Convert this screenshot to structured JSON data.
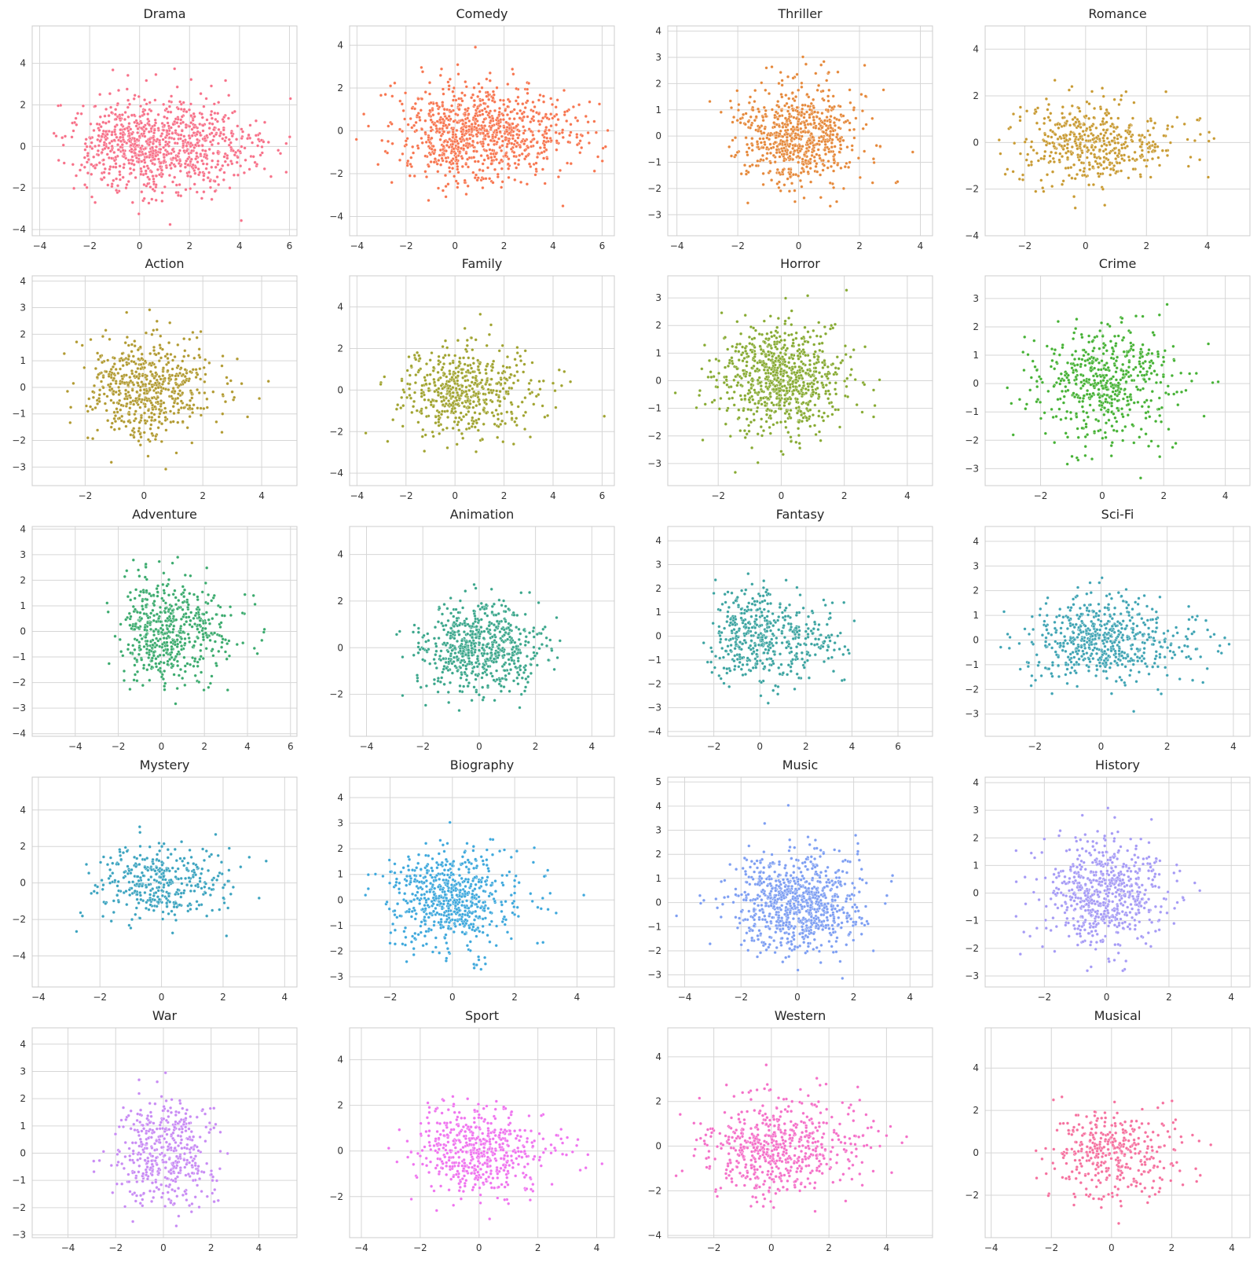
{
  "chart_data": [
    {
      "type": "scatter",
      "title": "Drama",
      "color": "#f77189",
      "xlim": [
        -4.3,
        6.3
      ],
      "ylim": [
        -4.3,
        5.8
      ],
      "xticks": [
        -4,
        -2,
        0,
        2,
        4,
        6
      ],
      "yticks": [
        -4,
        -2,
        0,
        2,
        4
      ],
      "center": [
        0.3,
        0.1
      ],
      "spread": [
        1.5,
        1.15
      ],
      "n": 950,
      "skew": 0.7,
      "points": []
    },
    {
      "type": "scatter",
      "title": "Comedy",
      "color": "#f7754f",
      "xlim": [
        -4.3,
        6.5
      ],
      "ylim": [
        -4.9,
        4.9
      ],
      "xticks": [
        -4,
        -2,
        0,
        2,
        4,
        6
      ],
      "yticks": [
        -4,
        -2,
        0,
        2,
        4
      ],
      "center": [
        0.6,
        -0.1
      ],
      "spread": [
        1.5,
        1.15
      ],
      "n": 950,
      "skew": 0.6,
      "points": []
    },
    {
      "type": "scatter",
      "title": "Thriller",
      "color": "#e5883a",
      "xlim": [
        -4.3,
        4.4
      ],
      "ylim": [
        -3.8,
        4.2
      ],
      "xticks": [
        -4,
        -2,
        0,
        2,
        4
      ],
      "yticks": [
        -3,
        -2,
        -1,
        0,
        1,
        2,
        3,
        4
      ],
      "center": [
        0.0,
        0.0
      ],
      "spread": [
        0.95,
        0.95
      ],
      "n": 700,
      "skew": 0.0,
      "points": []
    },
    {
      "type": "scatter",
      "title": "Romance",
      "color": "#c89a32",
      "xlim": [
        -3.3,
        5.4
      ],
      "ylim": [
        -4.0,
        5.0
      ],
      "xticks": [
        -2,
        0,
        2,
        4
      ],
      "yticks": [
        -4,
        -2,
        0,
        2,
        4
      ],
      "center": [
        0.0,
        0.0
      ],
      "spread": [
        1.1,
        0.9
      ],
      "n": 500,
      "skew": 0.4,
      "points": []
    },
    {
      "type": "scatter",
      "title": "Action",
      "color": "#b19a31",
      "xlim": [
        -3.8,
        5.2
      ],
      "ylim": [
        -3.7,
        4.2
      ],
      "xticks": [
        -2,
        0,
        2,
        4
      ],
      "yticks": [
        -3,
        -2,
        -1,
        0,
        1,
        2,
        3,
        4
      ],
      "center": [
        0.0,
        0.0
      ],
      "spread": [
        0.95,
        0.95
      ],
      "n": 600,
      "skew": 0.3,
      "points": []
    },
    {
      "type": "scatter",
      "title": "Family",
      "color": "#a0a32f",
      "xlim": [
        -4.3,
        6.5
      ],
      "ylim": [
        -4.6,
        5.5
      ],
      "xticks": [
        -4,
        -2,
        0,
        2,
        4,
        6
      ],
      "yticks": [
        -4,
        -2,
        0,
        2,
        4
      ],
      "center": [
        0.2,
        0.0
      ],
      "spread": [
        1.2,
        1.1
      ],
      "n": 550,
      "skew": 0.4,
      "points": []
    },
    {
      "type": "scatter",
      "title": "Horror",
      "color": "#87aa32",
      "xlim": [
        -3.6,
        4.8
      ],
      "ylim": [
        -3.8,
        3.8
      ],
      "xticks": [
        -2,
        0,
        2,
        4
      ],
      "yticks": [
        -3,
        -2,
        -1,
        0,
        1,
        2,
        3
      ],
      "center": [
        0.0,
        0.0
      ],
      "spread": [
        1.0,
        1.0
      ],
      "n": 800,
      "skew": 0.0,
      "points": []
    },
    {
      "type": "scatter",
      "title": "Crime",
      "color": "#45b134",
      "xlim": [
        -3.8,
        4.8
      ],
      "ylim": [
        -3.6,
        3.8
      ],
      "xticks": [
        -2,
        0,
        2,
        4
      ],
      "yticks": [
        -3,
        -2,
        -1,
        0,
        1,
        2,
        3
      ],
      "center": [
        0.0,
        0.0
      ],
      "spread": [
        1.0,
        1.0
      ],
      "n": 550,
      "skew": 0.2,
      "points": []
    },
    {
      "type": "scatter",
      "title": "Adventure",
      "color": "#3aaa6d",
      "xlim": [
        -6.0,
        6.3
      ],
      "ylim": [
        -4.1,
        4.1
      ],
      "xticks": [
        -4,
        -2,
        0,
        2,
        4,
        6
      ],
      "yticks": [
        -4,
        -3,
        -2,
        -1,
        0,
        1,
        2,
        3,
        4
      ],
      "center": [
        0.0,
        0.0
      ],
      "spread": [
        0.9,
        1.0
      ],
      "n": 550,
      "skew": 0.8,
      "points": []
    },
    {
      "type": "scatter",
      "title": "Animation",
      "color": "#3aa68b",
      "xlim": [
        -4.6,
        4.8
      ],
      "ylim": [
        -3.8,
        5.2
      ],
      "xticks": [
        -4,
        -2,
        0,
        2,
        4
      ],
      "yticks": [
        -2,
        0,
        2,
        4
      ],
      "center": [
        0.0,
        0.0
      ],
      "spread": [
        1.05,
        0.95
      ],
      "n": 650,
      "skew": 0.0,
      "points": []
    },
    {
      "type": "scatter",
      "title": "Fantasy",
      "color": "#3ba3a0",
      "xlim": [
        -4.0,
        7.5
      ],
      "ylim": [
        -4.2,
        4.6
      ],
      "xticks": [
        -2,
        0,
        2,
        4,
        6
      ],
      "yticks": [
        -4,
        -3,
        -2,
        -1,
        0,
        1,
        2,
        3,
        4
      ],
      "center": [
        -0.3,
        0.0
      ],
      "spread": [
        0.9,
        1.0
      ],
      "n": 500,
      "skew": 0.9,
      "points": []
    },
    {
      "type": "scatter",
      "title": "Sci-Fi",
      "color": "#3ea3b3",
      "xlim": [
        -3.5,
        4.5
      ],
      "ylim": [
        -3.9,
        4.6
      ],
      "xticks": [
        -2,
        0,
        2,
        4
      ],
      "yticks": [
        -3,
        -2,
        -1,
        0,
        1,
        2,
        3,
        4
      ],
      "center": [
        0.0,
        0.0
      ],
      "spread": [
        1.0,
        0.9
      ],
      "n": 600,
      "skew": 0.3,
      "points": []
    },
    {
      "type": "scatter",
      "title": "Mystery",
      "color": "#3ba3bf",
      "xlim": [
        -4.2,
        4.4
      ],
      "ylim": [
        -5.7,
        5.8
      ],
      "xticks": [
        -4,
        -2,
        0,
        2,
        4
      ],
      "yticks": [
        -4,
        -2,
        0,
        2,
        4
      ],
      "center": [
        0.0,
        0.0
      ],
      "spread": [
        1.1,
        1.0
      ],
      "n": 380,
      "skew": 0.0,
      "points": []
    },
    {
      "type": "scatter",
      "title": "Biography",
      "color": "#3ea8dc",
      "xlim": [
        -3.3,
        5.2
      ],
      "ylim": [
        -3.4,
        4.8
      ],
      "xticks": [
        -2,
        0,
        2,
        4
      ],
      "yticks": [
        -3,
        -2,
        -1,
        0,
        1,
        2,
        3,
        4
      ],
      "center": [
        0.0,
        0.0
      ],
      "spread": [
        1.0,
        1.0
      ],
      "n": 650,
      "skew": 0.2,
      "points": []
    },
    {
      "type": "scatter",
      "title": "Music",
      "color": "#7d9ef2",
      "xlim": [
        -4.6,
        4.8
      ],
      "ylim": [
        -3.5,
        5.2
      ],
      "xticks": [
        -4,
        -2,
        0,
        2,
        4
      ],
      "yticks": [
        -3,
        -2,
        -1,
        0,
        1,
        2,
        3,
        4,
        5
      ],
      "center": [
        0.0,
        0.0
      ],
      "spread": [
        1.1,
        1.0
      ],
      "n": 850,
      "skew": 0.0,
      "points": []
    },
    {
      "type": "scatter",
      "title": "History",
      "color": "#a59af5",
      "xlim": [
        -3.9,
        4.6
      ],
      "ylim": [
        -3.4,
        4.2
      ],
      "xticks": [
        -2,
        0,
        2,
        4
      ],
      "yticks": [
        -3,
        -2,
        -1,
        0,
        1,
        2,
        3,
        4
      ],
      "center": [
        0.0,
        0.0
      ],
      "spread": [
        1.0,
        1.0
      ],
      "n": 650,
      "skew": 0.0,
      "points": []
    },
    {
      "type": "scatter",
      "title": "War",
      "color": "#c88bf4",
      "xlim": [
        -5.5,
        5.6
      ],
      "ylim": [
        -3.1,
        4.6
      ],
      "xticks": [
        -4,
        -2,
        0,
        2,
        4
      ],
      "yticks": [
        -3,
        -2,
        -1,
        0,
        1,
        2,
        3,
        4
      ],
      "center": [
        0.0,
        0.0
      ],
      "spread": [
        1.1,
        1.0
      ],
      "n": 450,
      "skew": 0.0,
      "points": []
    },
    {
      "type": "scatter",
      "title": "Sport",
      "color": "#ef73ef",
      "xlim": [
        -4.4,
        4.6
      ],
      "ylim": [
        -3.8,
        5.4
      ],
      "xticks": [
        -4,
        -2,
        0,
        2,
        4
      ],
      "yticks": [
        -2,
        0,
        2,
        4
      ],
      "center": [
        0.0,
        0.0
      ],
      "spread": [
        1.0,
        1.0
      ],
      "n": 550,
      "skew": 0.2,
      "points": []
    },
    {
      "type": "scatter",
      "title": "Western",
      "color": "#f46fc8",
      "xlim": [
        -3.6,
        5.6
      ],
      "ylim": [
        -4.1,
        5.3
      ],
      "xticks": [
        -2,
        0,
        2,
        4
      ],
      "yticks": [
        -4,
        -2,
        0,
        2,
        4
      ],
      "center": [
        0.0,
        0.0
      ],
      "spread": [
        1.1,
        1.1
      ],
      "n": 600,
      "skew": 0.5,
      "points": []
    },
    {
      "type": "scatter",
      "title": "Musical",
      "color": "#f5709e",
      "xlim": [
        -4.2,
        4.6
      ],
      "ylim": [
        -4.0,
        5.9
      ],
      "xticks": [
        -4,
        -2,
        0,
        2,
        4
      ],
      "yticks": [
        -2,
        0,
        2,
        4
      ],
      "center": [
        0.0,
        0.0
      ],
      "spread": [
        1.1,
        1.0
      ],
      "n": 380,
      "skew": 0.0,
      "points": []
    }
  ]
}
